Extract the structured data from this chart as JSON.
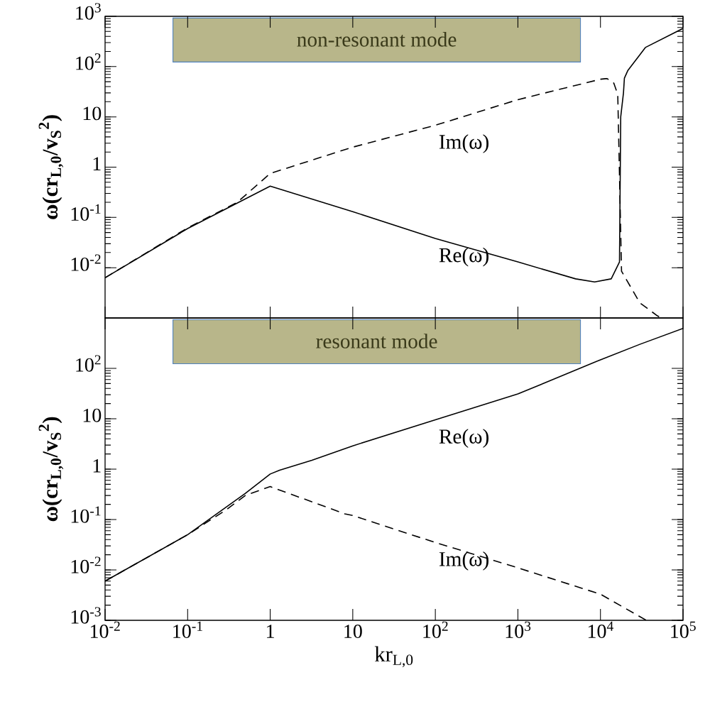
{
  "chart_data": [
    {
      "type": "line",
      "title": "non-resonant mode",
      "ylabel": "ω(cr$_{L,0}$/v$_{S}$$^{2}$)",
      "log": "xy",
      "tick_labels": "y",
      "xlim": [
        0.01,
        100000
      ],
      "ylim": [
        0.001,
        1000
      ],
      "xticks": [
        {
          "value": 0.01,
          "label": null
        },
        {
          "value": 0.1,
          "label": null
        },
        {
          "value": 1,
          "label": null
        },
        {
          "value": 10,
          "label": null
        },
        {
          "value": 100,
          "label": null
        },
        {
          "value": 1000,
          "label": null
        },
        {
          "value": 10000,
          "label": null
        },
        {
          "value": 100000,
          "label": null
        }
      ],
      "yticks": [
        {
          "value": 0.01,
          "label": "10$^{-2}$"
        },
        {
          "value": 0.1,
          "label": "10$^{-1}$"
        },
        1,
        10,
        {
          "value": 100,
          "label": "10$^{2}$"
        },
        {
          "value": 1000,
          "label": "10$^{3}$"
        }
      ],
      "series": [
        {
          "name": "Re(ω)",
          "color": "#000000",
          "line_style": "solid",
          "x": [
            0.01,
            0.1,
            1,
            10,
            100,
            1000,
            5000,
            8500,
            13500,
            17000,
            17600,
            19000,
            19500,
            21400,
            35000,
            100000
          ],
          "values": [
            0.0063,
            0.06,
            0.42,
            0.13,
            0.038,
            0.013,
            0.006,
            0.0052,
            0.006,
            0.013,
            10,
            30,
            59,
            83,
            240,
            575
          ]
        },
        {
          "name": "Im(ω)",
          "color": "#000000",
          "line_style": "dashed",
          "x": [
            0.01,
            0.1,
            0.4,
            1,
            10,
            100,
            1000,
            10000,
            12000,
            14500,
            16200,
            18000,
            30000,
            49000,
            55000
          ],
          "values": [
            0.0063,
            0.062,
            0.2,
            0.75,
            2.5,
            6.8,
            22,
            56,
            58,
            47,
            28,
            0.0085,
            0.002,
            0.0011,
            0.001
          ]
        }
      ]
    },
    {
      "type": "line",
      "title": "resonant mode",
      "xlabel": "kr$_{L,0}$",
      "ylabel": "ω(cr$_{L,0}$/v$_{S}$$^{2}$)",
      "log": "xy",
      "xlim": [
        0.01,
        100000
      ],
      "ylim": [
        0.001,
        1000
      ],
      "xticks": [
        {
          "value": 0.01,
          "label": "10$^{-2}$"
        },
        {
          "value": 0.1,
          "label": "10$^{-1}$"
        },
        1,
        10,
        {
          "value": 100,
          "label": "10$^{2}$"
        },
        {
          "value": 1000,
          "label": "10$^{3}$"
        },
        {
          "value": 10000,
          "label": "10$^{4}$"
        },
        {
          "value": 100000,
          "label": "10$^{5}$"
        }
      ],
      "yticks": [
        {
          "value": 0.001,
          "label": "10$^{-3}$"
        },
        {
          "value": 0.01,
          "label": "10$^{-2}$"
        },
        {
          "value": 0.1,
          "label": "10$^{-1}$"
        },
        1,
        10,
        {
          "value": 100,
          "label": "10$^{2}$"
        }
      ],
      "series": [
        {
          "name": "Re(ω)",
          "color": "#000000",
          "line_style": "solid",
          "x": [
            0.01,
            0.1,
            0.5,
            1,
            1.3,
            3.2,
            10,
            100,
            1000,
            10000,
            30000,
            100000
          ],
          "values": [
            0.006,
            0.05,
            0.33,
            0.8,
            0.95,
            1.5,
            2.9,
            9.5,
            31,
            148,
            300,
            620
          ]
        },
        {
          "name": "Im(ω)",
          "color": "#000000",
          "line_style": "dashed",
          "x": [
            0.01,
            0.1,
            0.3,
            0.5,
            1,
            8,
            10,
            100,
            1000,
            10000,
            36000
          ],
          "values": [
            0.006,
            0.05,
            0.16,
            0.3,
            0.45,
            0.13,
            0.12,
            0.035,
            0.011,
            0.0033,
            0.001
          ]
        }
      ]
    }
  ]
}
